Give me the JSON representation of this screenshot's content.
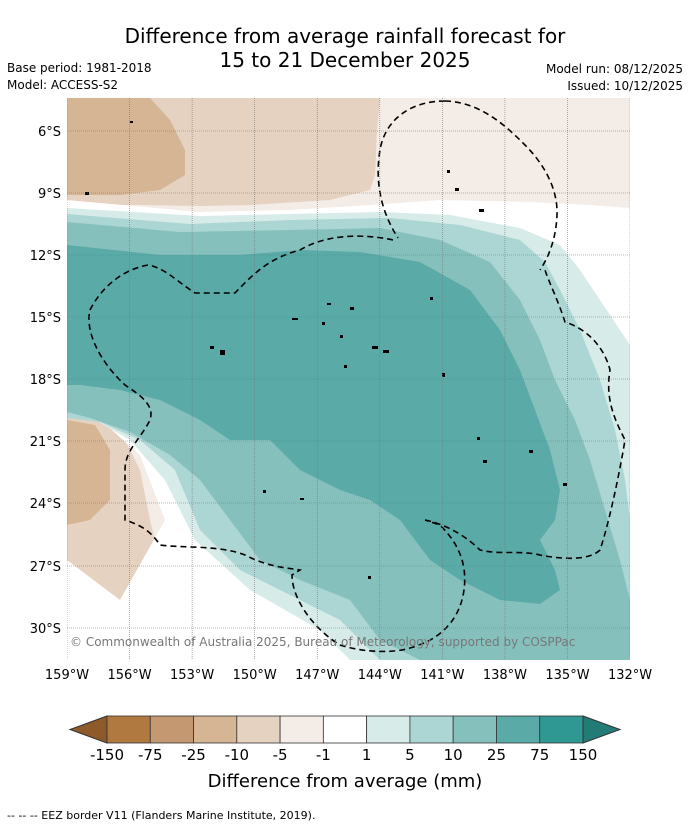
{
  "title_line1": "Difference from average rainfall forecast for",
  "title_line2": "15 to 21 December 2025",
  "base_period": "Base period: 1981-2018",
  "model": "Model: ACCESS-S2",
  "model_run": "Model run: 08/12/2025",
  "issued": "Issued: 10/12/2025",
  "copyright": "© Commonwealth of Australia 2025, Bureau of Meteorology, supported by COSPPac",
  "lat_labels": [
    "6°S",
    "9°S",
    "12°S",
    "15°S",
    "18°S",
    "21°S",
    "24°S",
    "27°S",
    "30°S"
  ],
  "lon_labels": [
    "159°W",
    "156°W",
    "153°W",
    "150°W",
    "147°W",
    "144°W",
    "141°W",
    "138°W",
    "135°W",
    "132°W"
  ],
  "colorbar": {
    "labels": [
      "-150",
      "-75",
      "-25",
      "-10",
      "-5",
      "-1",
      "1",
      "5",
      "10",
      "25",
      "75",
      "150"
    ],
    "colors": [
      "#8f5a2a",
      "#b07940",
      "#c49870",
      "#d5b594",
      "#e6d2c1",
      "#f4ece6",
      "#ffffff",
      "#d7ebe9",
      "#acd6d3",
      "#86c0bd",
      "#5aaaa7",
      "#309893",
      "#237b78"
    ],
    "title": "Difference from average (mm)"
  },
  "legend_line": "--  --  -- EEZ border V11 (Flanders Marine Institute, 2019)."
}
